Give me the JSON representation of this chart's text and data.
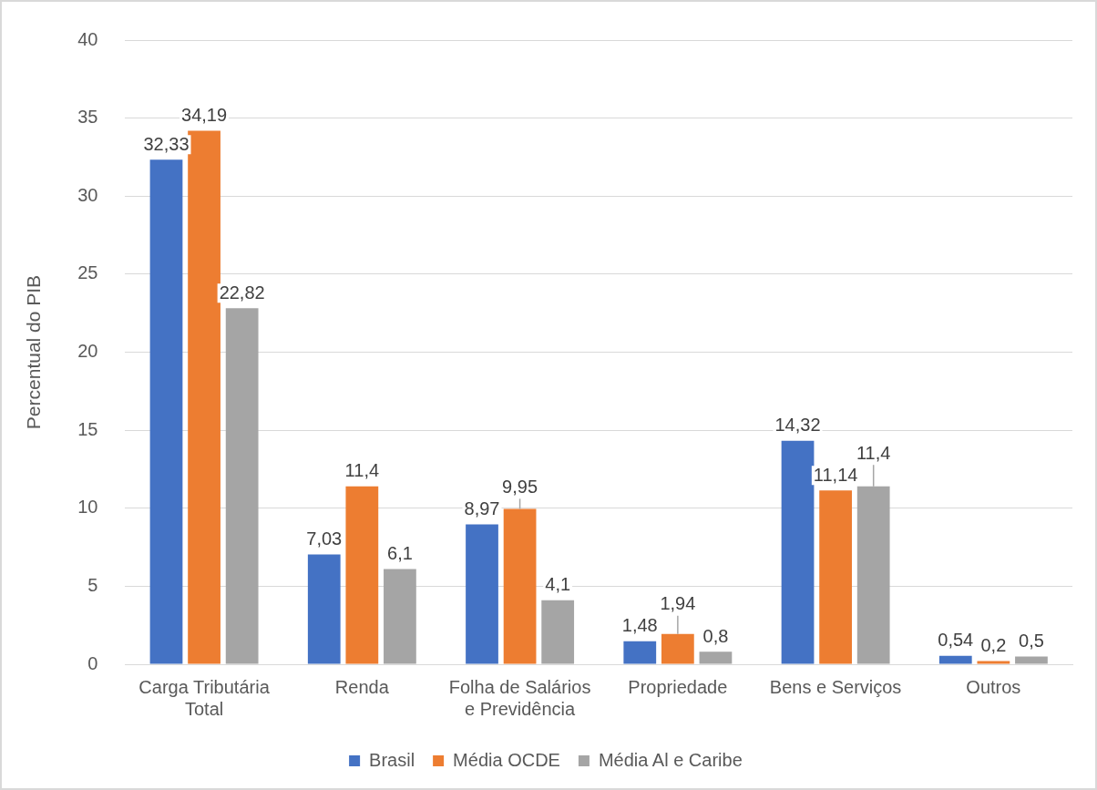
{
  "chart_data": {
    "type": "bar",
    "ylabel": "Percentual do PIB",
    "categories": [
      "Carga Tributária Total",
      "Renda",
      "Folha de Salários e Previdência",
      "Propriedade",
      "Bens e Serviços",
      "Outros"
    ],
    "series": [
      {
        "name": "Brasil",
        "color": "#4472c4",
        "values": [
          32.33,
          7.03,
          8.97,
          1.48,
          14.32,
          0.54
        ],
        "value_labels": [
          "32,33",
          "7,03",
          "8,97",
          "1,48",
          "14,32",
          "0,54"
        ]
      },
      {
        "name": "Média OCDE",
        "color": "#ed7d31",
        "values": [
          34.19,
          11.4,
          9.95,
          1.94,
          11.14,
          0.2
        ],
        "value_labels": [
          "34,19",
          "11,4",
          "9,95",
          "1,94",
          "11,14",
          "0,2"
        ]
      },
      {
        "name": "Média Al e Caribe",
        "color": "#a5a5a5",
        "values": [
          22.82,
          6.1,
          4.1,
          0.8,
          11.4,
          0.5
        ],
        "value_labels": [
          "22,82",
          "6,1",
          "4,1",
          "0,8",
          "11,4",
          "0,5"
        ]
      }
    ],
    "ylim": [
      0,
      40
    ],
    "yticks": [
      0,
      5,
      10,
      15,
      20,
      25,
      30,
      35,
      40
    ],
    "grid": "y",
    "legend": "bottom"
  }
}
